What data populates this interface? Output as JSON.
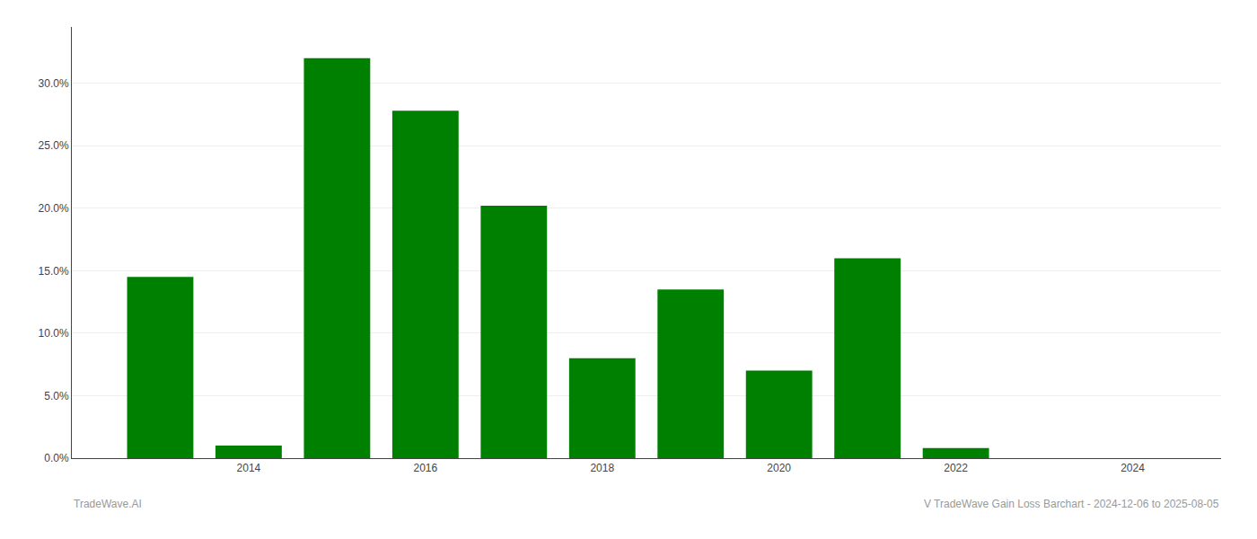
{
  "chart_data": {
    "type": "bar",
    "x": [
      2013,
      2014,
      2015,
      2016,
      2017,
      2018,
      2019,
      2020,
      2021,
      2022,
      2023
    ],
    "values": [
      0.145,
      0.01,
      0.32,
      0.278,
      0.202,
      0.08,
      0.135,
      0.07,
      0.16,
      0.008,
      0.0
    ],
    "color": "#008000",
    "xlim": [
      2012.0,
      2025.0
    ],
    "xticks": [
      2014,
      2016,
      2018,
      2020,
      2022,
      2024
    ],
    "ylim": [
      0,
      0.345
    ],
    "yticks": [
      {
        "value": 0.0,
        "label": "0.0%"
      },
      {
        "value": 0.05,
        "label": "5.0%"
      },
      {
        "value": 0.1,
        "label": "10.0%"
      },
      {
        "value": 0.15,
        "label": "15.0%"
      },
      {
        "value": 0.2,
        "label": "20.0%"
      },
      {
        "value": 0.25,
        "label": "25.0%"
      },
      {
        "value": 0.3,
        "label": "30.0%"
      }
    ],
    "grid": true,
    "annotations": [
      "TradeWave.AI",
      "V TradeWave Gain Loss Barchart - 2024-12-06 to 2025-08-05"
    ]
  }
}
